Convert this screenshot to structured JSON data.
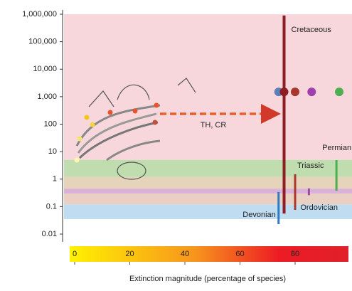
{
  "chart_data": {
    "type": "scatter",
    "x_label": "Extinction magnitude (percentage of species)",
    "xlim": [
      0,
      100
    ],
    "xticks": [
      0,
      20,
      40,
      60,
      80
    ],
    "ylim": [
      0.01,
      1000000
    ],
    "log_y": true,
    "yticks": [
      {
        "value": 1000000,
        "label": "1,000,000"
      },
      {
        "value": 100000,
        "label": "100,000"
      },
      {
        "value": 10000,
        "label": "10,000"
      },
      {
        "value": 1000,
        "label": "1,000"
      },
      100,
      10,
      1,
      0.1,
      0.01
    ],
    "bands": [
      {
        "color": "#f6d3d8",
        "range": [
          5,
          1000000
        ]
      },
      {
        "color": "#b9d9a6",
        "range": [
          1.2,
          5
        ]
      },
      {
        "color": "#e3cfb2",
        "range": [
          0.45,
          1.2
        ]
      },
      {
        "color": "#d6a8d4",
        "range": [
          0.3,
          0.45
        ]
      },
      {
        "color": "#e7cbbb",
        "range": [
          0.12,
          0.3
        ]
      },
      {
        "color": "#b9d8ee",
        "range": [
          0.035,
          0.12
        ]
      }
    ],
    "events": [
      {
        "name": "Cretaceous",
        "color": "#8c1d23",
        "x": 76,
        "range": [
          0.056,
          900000
        ]
      },
      {
        "name": "Permian",
        "color": "#4caf50",
        "x": 95,
        "range": [
          0.38,
          4.9
        ]
      },
      {
        "name": "Triassic",
        "color": "#a8382c",
        "x": 80,
        "range": [
          0.076,
          1.5
        ]
      },
      {
        "name": "Ordovician",
        "color": "#9b4ea0",
        "x": 85,
        "range": [
          0.26,
          0.46
        ]
      },
      {
        "name": "Devonian",
        "color": "#2d7cc1",
        "x": 74,
        "range": [
          0.023,
          0.34
        ]
      }
    ],
    "points": {
      "x": [
        74,
        76,
        80,
        86,
        96
      ],
      "values": [
        1500,
        1500,
        1500,
        1500,
        1500
      ],
      "colors": [
        "#5b7fb8",
        "#8c1d23",
        "#a8382c",
        "#a040b0",
        "#4caf50"
      ]
    },
    "annotation": "TH, CR"
  }
}
